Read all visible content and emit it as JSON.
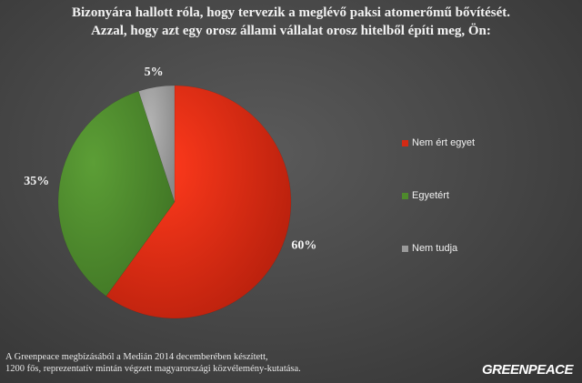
{
  "title_lines": [
    "Bizonyára hallott róla, hogy tervezik a meglévő paksi atomerőmű bővítését.",
    "Azzal, hogy azt egy orosz állami vállalat orosz hitelből építi meg, Ön:"
  ],
  "colors": {
    "nem_ert_egyet": "#d42a14",
    "egyetert": "#4e8a2c",
    "nem_tudja": "#9a9a9a"
  },
  "chart_data": {
    "type": "pie",
    "title": "Bizonyára hallott róla, hogy tervezik a meglévő paksi atomerőmű bővítését. Azzal, hogy azt egy orosz állami vállalat orosz hitelből építi meg, Ön:",
    "categories": [
      "Nem ért egyet",
      "Egyetért",
      "Nem tudja"
    ],
    "values": [
      60,
      35,
      5
    ],
    "labels": [
      "60%",
      "35%",
      "5%"
    ],
    "start_angle": "12 o'clock, clockwise",
    "legend_position": "right"
  },
  "legend": [
    {
      "label": "Nem ért egyet",
      "color": "#d42a14"
    },
    {
      "label": "Egyetért",
      "color": "#4e8a2c"
    },
    {
      "label": "Nem tudja",
      "color": "#9a9a9a"
    }
  ],
  "footnote_lines": [
    "A Greenpeace megbízásából a Medián 2014 decemberében készített,",
    "1200 fős, reprezentatív mintán végzett magyarországi közvélemény-kutatása."
  ],
  "logo_text": "GREENPEACE"
}
